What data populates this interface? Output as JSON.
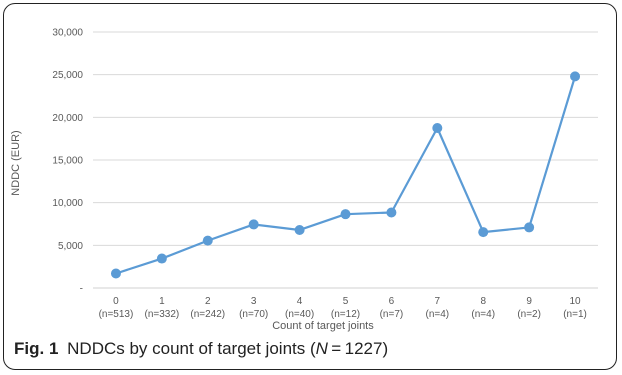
{
  "caption": {
    "label": "Fig. 1",
    "text_before": "NDDCs by count of target joints (",
    "n_var": "N",
    "text_after": " = 1227)"
  },
  "chart_data": {
    "type": "line",
    "title": "",
    "xlabel": "Count of target joints",
    "ylabel": "NDDC (EUR)",
    "categories": [
      "0",
      "1",
      "2",
      "3",
      "4",
      "5",
      "6",
      "7",
      "8",
      "9",
      "10"
    ],
    "category_counts": [
      "(n=513)",
      "(n=332)",
      "(n=242)",
      "(n=70)",
      "(n=40)",
      "(n=12)",
      "(n=7)",
      "(n=4)",
      "(n=4)",
      "(n=2)",
      "(n=1)"
    ],
    "series": [
      {
        "values": [
          1700,
          3450,
          5550,
          7450,
          6800,
          8650,
          8850,
          18750,
          6550,
          7100,
          24800
        ]
      }
    ],
    "ylim": [
      0,
      30000
    ],
    "yticks": [
      "-",
      "5,000",
      "10,000",
      "15,000",
      "20,000",
      "25,000",
      "30,000"
    ],
    "ytick_values": [
      0,
      5000,
      10000,
      15000,
      20000,
      25000,
      30000
    ],
    "grid": true,
    "color": "#5b9bd5"
  }
}
